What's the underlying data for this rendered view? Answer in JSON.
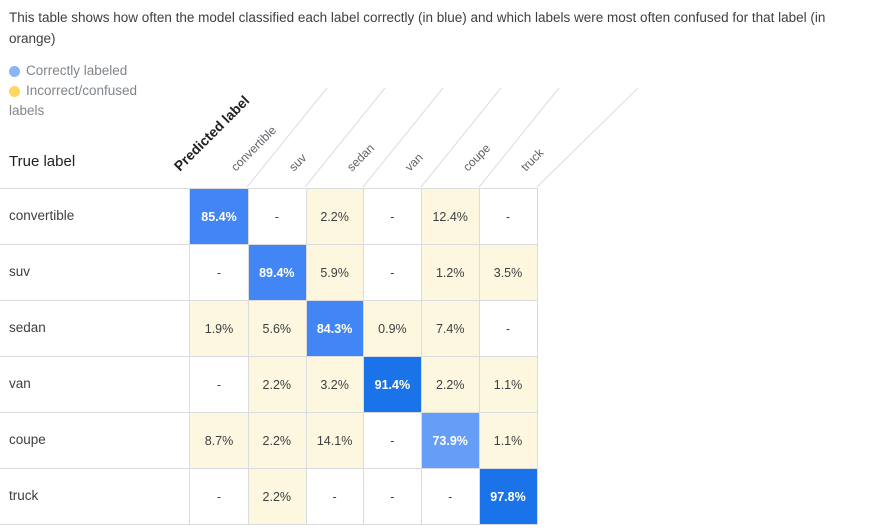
{
  "description": "This table shows how often the model classified each label correctly (in blue) and which labels were most often confused for that label (in orange)",
  "legend": {
    "correct": "Correctly labeled",
    "incorrect_line1": "Incorrect/confused",
    "incorrect_line2": "labels",
    "correct_color": "#8ab4f8",
    "incorrect_color": "#fdd663"
  },
  "headers": {
    "true_label": "True label",
    "predicted_label": "Predicted label"
  },
  "columns": [
    "convertible",
    "suv",
    "sedan",
    "van",
    "coupe",
    "truck"
  ],
  "rows": [
    {
      "label": "convertible",
      "cells": [
        "85.4%",
        "-",
        "2.2%",
        "-",
        "12.4%",
        "-"
      ]
    },
    {
      "label": "suv",
      "cells": [
        "-",
        "89.4%",
        "5.9%",
        "-",
        "1.2%",
        "3.5%"
      ]
    },
    {
      "label": "sedan",
      "cells": [
        "1.9%",
        "5.6%",
        "84.3%",
        "0.9%",
        "7.4%",
        "-"
      ]
    },
    {
      "label": "van",
      "cells": [
        "-",
        "2.2%",
        "3.2%",
        "91.4%",
        "2.2%",
        "1.1%"
      ]
    },
    {
      "label": "coupe",
      "cells": [
        "8.7%",
        "2.2%",
        "14.1%",
        "-",
        "73.9%",
        "1.1%"
      ]
    },
    {
      "label": "truck",
      "cells": [
        "-",
        "2.2%",
        "-",
        "-",
        "-",
        "97.8%"
      ]
    }
  ],
  "colors": {
    "confused_bg": "#fef7e0",
    "correct_high": "#1a73e8",
    "correct_mid": "#4285f4",
    "correct_low": "#669df6"
  }
}
